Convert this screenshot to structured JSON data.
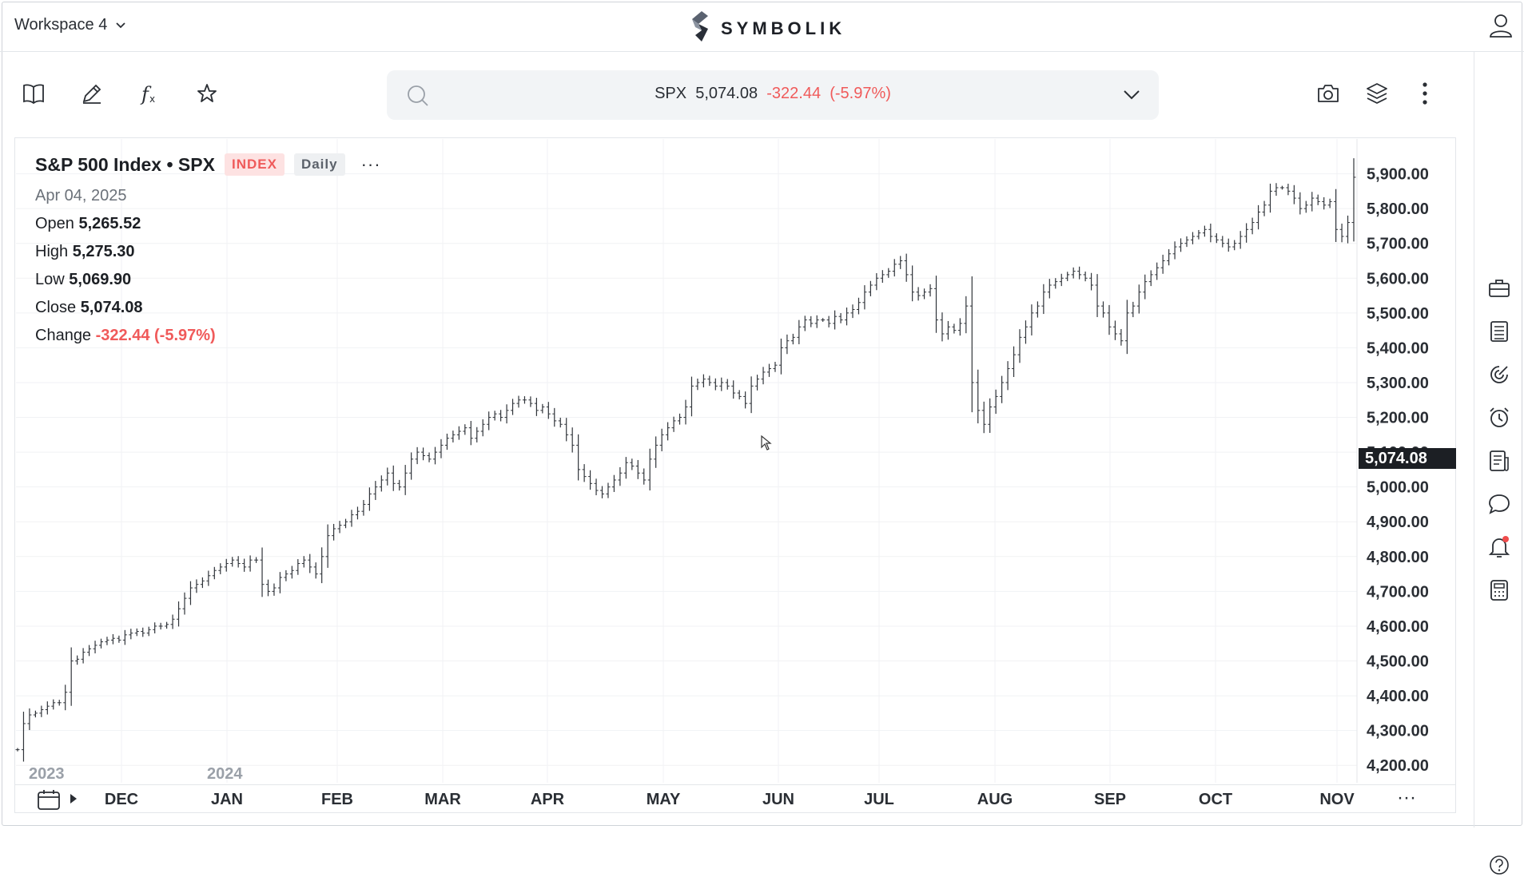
{
  "workspace": {
    "label": "Workspace 4"
  },
  "brand": {
    "name": "SYMBOLIK"
  },
  "quote": {
    "symbol": "SPX",
    "last": "5,074.08",
    "change": "-322.44",
    "change_pct": "(-5.97%)"
  },
  "chart_header": {
    "title": "S&P 500 Index • SPX",
    "badge_type": "INDEX",
    "badge_interval": "Daily",
    "more": "···",
    "date": "Apr 04, 2025",
    "open_label": "Open",
    "open": "5,265.52",
    "high_label": "High",
    "high": "5,275.30",
    "low_label": "Low",
    "low": "5,069.90",
    "close_label": "Close",
    "close": "5,074.08",
    "change_label": "Change",
    "change": "-322.44 (-5.97%)"
  },
  "price_label": "5,074.08",
  "axis_more": "···",
  "chart_data": {
    "type": "ohlc",
    "title": "S&P 500 Index • SPX",
    "ylim": [
      4150,
      6000
    ],
    "y_ticks": [
      4200,
      4300,
      4400,
      4500,
      4600,
      4700,
      4800,
      4900,
      5000,
      5100,
      5200,
      5300,
      5400,
      5500,
      5600,
      5700,
      5800,
      5900
    ],
    "y_tick_labels": [
      "4,200.00",
      "4,300.00",
      "4,400.00",
      "4,500.00",
      "4,600.00",
      "4,700.00",
      "4,800.00",
      "4,900.00",
      "5,000.00",
      "5,100.00",
      "5,200.00",
      "5,300.00",
      "5,400.00",
      "5,500.00",
      "5,600.00",
      "5,700.00",
      "5,800.00",
      "5,900.00"
    ],
    "x_tick_labels": [
      "DEC",
      "JAN",
      "FEB",
      "MAR",
      "APR",
      "MAY",
      "JUN",
      "JUL",
      "AUG",
      "SEP",
      "OCT",
      "NOV"
    ],
    "x_year_labels": [
      "2023",
      "2024"
    ],
    "grid": true,
    "closes": [
      4245,
      4320,
      4345,
      4350,
      4360,
      4370,
      4380,
      4380,
      4410,
      4500,
      4505,
      4525,
      4535,
      4545,
      4555,
      4560,
      4565,
      4560,
      4575,
      4580,
      4585,
      4580,
      4590,
      4600,
      4600,
      4605,
      4620,
      4650,
      4680,
      4710,
      4720,
      4730,
      4745,
      4760,
      4770,
      4780,
      4790,
      4780,
      4770,
      4790,
      4790,
      4720,
      4700,
      4710,
      4740,
      4750,
      4760,
      4780,
      4790,
      4770,
      4750,
      4800,
      4860,
      4880,
      4890,
      4900,
      4920,
      4930,
      4950,
      4980,
      5000,
      5020,
      5040,
      5010,
      5000,
      5040,
      5080,
      5100,
      5090,
      5080,
      5100,
      5120,
      5140,
      5150,
      5160,
      5170,
      5140,
      5160,
      5180,
      5200,
      5210,
      5200,
      5220,
      5240,
      5250,
      5250,
      5240,
      5220,
      5230,
      5210,
      5190,
      5180,
      5150,
      5120,
      5050,
      5030,
      5010,
      4990,
      4980,
      5000,
      5020,
      5040,
      5070,
      5060,
      5040,
      5020,
      5080,
      5120,
      5150,
      5170,
      5190,
      5200,
      5230,
      5290,
      5300,
      5310,
      5300,
      5290,
      5300,
      5290,
      5270,
      5260,
      5240,
      5290,
      5310,
      5330,
      5340,
      5350,
      5400,
      5420,
      5430,
      5460,
      5480,
      5470,
      5480,
      5480,
      5470,
      5490,
      5480,
      5500,
      5510,
      5530,
      5560,
      5580,
      5600,
      5610,
      5620,
      5640,
      5650,
      5610,
      5560,
      5550,
      5560,
      5570,
      5480,
      5440,
      5460,
      5450,
      5470,
      5520,
      5300,
      5220,
      5180,
      5230,
      5260,
      5300,
      5340,
      5380,
      5430,
      5460,
      5500,
      5520,
      5560,
      5580,
      5590,
      5600,
      5610,
      5620,
      5610,
      5600,
      5580,
      5520,
      5500,
      5460,
      5440,
      5420,
      5500,
      5520,
      5560,
      5590,
      5610,
      5630,
      5650,
      5670,
      5690,
      5700,
      5710,
      5720,
      5730,
      5740,
      5720,
      5710,
      5700,
      5690,
      5700,
      5720,
      5740,
      5760,
      5790,
      5810,
      5850,
      5860,
      5860,
      5850,
      5830,
      5800,
      5810,
      5830,
      5820,
      5810,
      5820,
      5740,
      5720,
      5760,
      5890
    ]
  }
}
